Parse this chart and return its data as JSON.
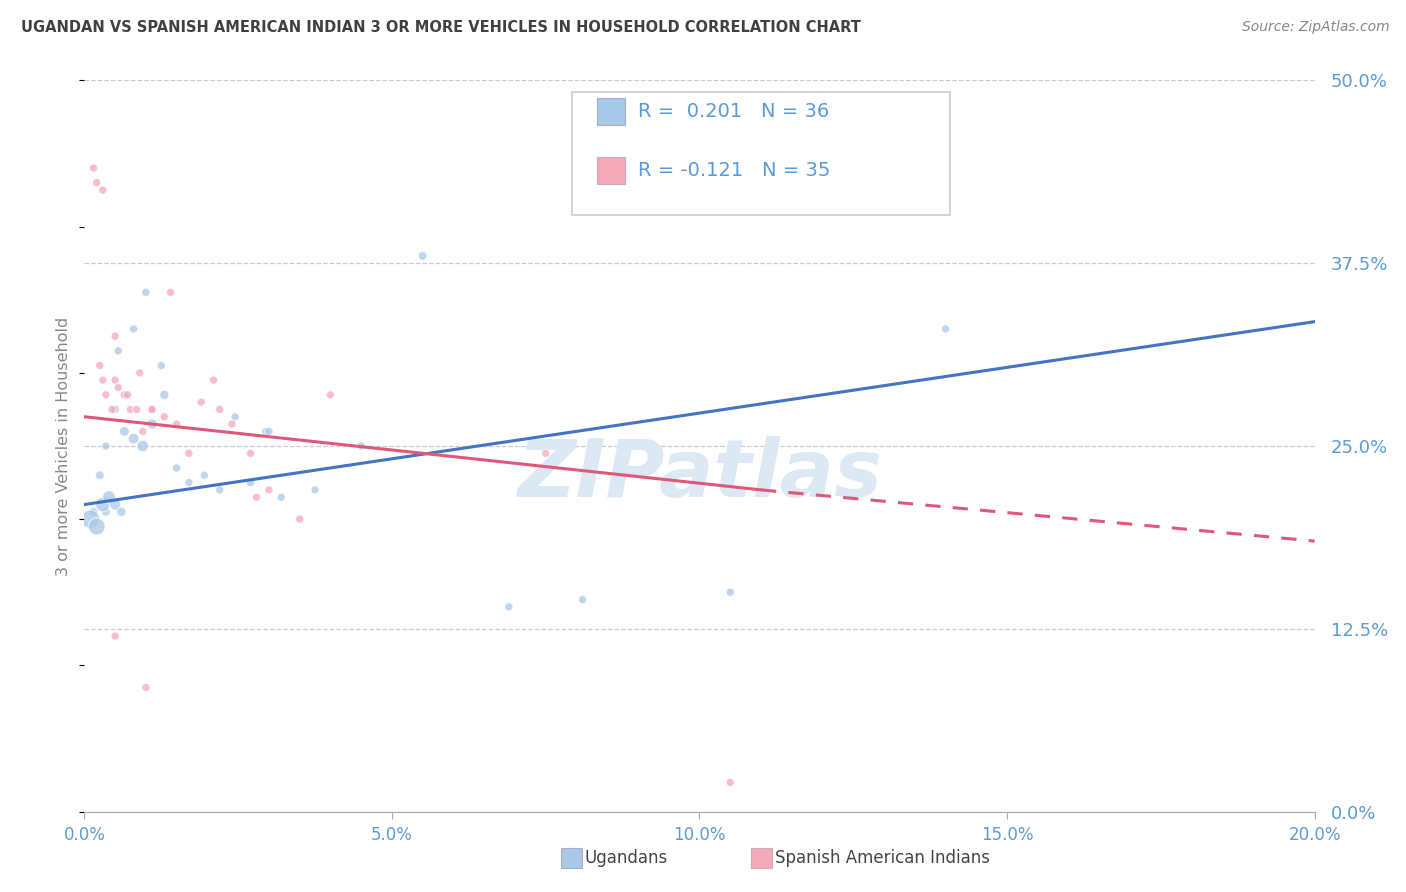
{
  "title": "UGANDAN VS SPANISH AMERICAN INDIAN 3 OR MORE VEHICLES IN HOUSEHOLD CORRELATION CHART",
  "source": "Source: ZipAtlas.com",
  "ylabel_label": "3 or more Vehicles in Household",
  "legend_label1": "Ugandans",
  "legend_label2": "Spanish American Indians",
  "r1": "0.201",
  "n1": "36",
  "r2": "-0.121",
  "n2": "35",
  "blue_scatter_color": "#a8c8e8",
  "pink_scatter_color": "#f4a8b8",
  "blue_line_color": "#4472C4",
  "pink_line_color": "#E05878",
  "axis_tick_color": "#5b9bd5",
  "ylabel_color": "#888888",
  "title_color": "#404040",
  "source_color": "#888888",
  "watermark_color": "#dce8f4",
  "grid_color": "#cccccc",
  "background_color": "#ffffff",
  "xlim": [
    0,
    20
  ],
  "ylim": [
    0,
    50
  ],
  "xticks": [
    0,
    5,
    10,
    15,
    20
  ],
  "yticks": [
    0,
    12.5,
    25.0,
    37.5,
    50.0
  ],
  "blue_line_x0": 0,
  "blue_line_y0": 21.0,
  "blue_line_x1": 20,
  "blue_line_y1": 33.5,
  "pink_line_x0": 0,
  "pink_line_y0": 27.0,
  "pink_line_x1_solid": 11.0,
  "pink_line_y1_solid": 22.0,
  "pink_line_x1_dash": 20,
  "pink_line_y1_dash": 18.5,
  "ugandan_x": [
    0.35,
    0.25,
    0.55,
    0.8,
    1.0,
    1.25,
    0.15,
    0.35,
    0.5,
    0.65,
    0.8,
    0.95,
    1.1,
    1.3,
    1.5,
    1.7,
    1.95,
    2.2,
    2.45,
    2.7,
    2.95,
    3.2,
    3.75,
    0.1,
    0.2,
    0.3,
    0.4,
    0.5,
    0.6,
    3.0,
    4.5,
    6.9,
    8.1,
    10.5,
    14.0,
    5.5
  ],
  "ugandan_y": [
    20.5,
    23.0,
    31.5,
    33.0,
    35.5,
    30.5,
    20.5,
    25.0,
    27.5,
    26.0,
    25.5,
    25.0,
    26.5,
    28.5,
    23.5,
    22.5,
    23.0,
    22.0,
    27.0,
    22.5,
    26.0,
    21.5,
    22.0,
    20.0,
    19.5,
    21.0,
    21.5,
    21.0,
    20.5,
    26.0,
    25.0,
    14.0,
    14.5,
    15.0,
    33.0,
    38.0
  ],
  "ugandan_sizes": [
    40,
    40,
    35,
    35,
    35,
    35,
    40,
    35,
    40,
    50,
    60,
    70,
    55,
    45,
    35,
    35,
    35,
    35,
    35,
    35,
    35,
    35,
    35,
    180,
    150,
    110,
    85,
    65,
    45,
    35,
    35,
    35,
    35,
    35,
    35,
    40
  ],
  "spanish_x": [
    0.15,
    0.2,
    0.25,
    0.3,
    0.35,
    0.45,
    0.5,
    0.55,
    0.65,
    0.75,
    0.85,
    0.95,
    1.1,
    1.3,
    1.5,
    1.7,
    1.9,
    2.1,
    2.4,
    2.7,
    3.0,
    3.5,
    0.3,
    0.5,
    0.7,
    0.9,
    1.1,
    1.4,
    2.8,
    4.0,
    10.5,
    0.5,
    1.0,
    2.2,
    7.5
  ],
  "spanish_y": [
    44.0,
    43.0,
    30.5,
    29.5,
    28.5,
    27.5,
    29.5,
    29.0,
    28.5,
    27.5,
    27.5,
    26.0,
    27.5,
    27.0,
    26.5,
    24.5,
    28.0,
    29.5,
    26.5,
    24.5,
    22.0,
    20.0,
    42.5,
    32.5,
    28.5,
    30.0,
    27.5,
    35.5,
    21.5,
    28.5,
    2.0,
    12.0,
    8.5,
    27.5,
    24.5
  ],
  "spanish_sizes": [
    35,
    35,
    35,
    35,
    35,
    35,
    35,
    35,
    35,
    35,
    35,
    35,
    35,
    35,
    35,
    35,
    35,
    35,
    35,
    35,
    35,
    35,
    35,
    35,
    35,
    35,
    35,
    35,
    35,
    35,
    35,
    35,
    35,
    35,
    35
  ]
}
